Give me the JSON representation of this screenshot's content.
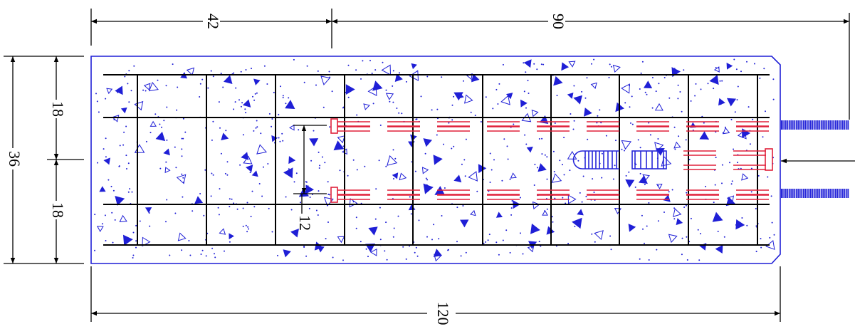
{
  "dimensions": {
    "top_left": "42",
    "top_right": "90",
    "left_total": "36",
    "left_upper": "18",
    "left_lower": "18",
    "inner_spacing": "12",
    "bottom_total": "120"
  },
  "colors": {
    "slab_outline": "#1f1fd6",
    "concrete_speckle": "#1f1fd6",
    "grid_lines": "#000000",
    "embedded_bars": "#e0203a",
    "threaded_rods": "#2626d9",
    "dimension_lines": "#000000"
  }
}
